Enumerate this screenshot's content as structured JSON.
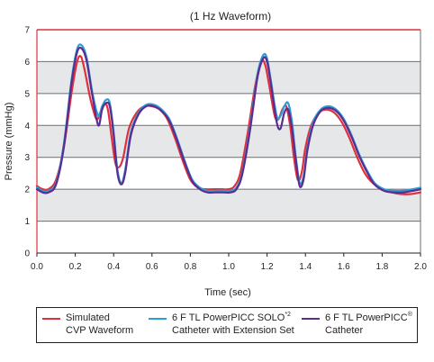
{
  "chart_data": {
    "type": "line",
    "title": "(1 Hz Waveform)",
    "xlabel": "Time (sec)",
    "ylabel": "Pressure (mmHg)",
    "xlim": [
      0,
      2.0
    ],
    "ylim": [
      0,
      7
    ],
    "xticks": [
      "0.0",
      "0.2",
      "0.4",
      "0.6",
      "0.8",
      "1.0",
      "1.2",
      "1.4",
      "1.6",
      "1.8",
      "2.0"
    ],
    "yticks": [
      "0",
      "1",
      "2",
      "3",
      "4",
      "5",
      "6",
      "7"
    ],
    "grid": "horizontal bands",
    "legend_position": "bottom",
    "series": [
      {
        "name": "Simulated CVP Waveform",
        "legend_line1": "Simulated",
        "legend_line2": "CVP Waveform",
        "color": "#e0303c",
        "x": [
          0.0,
          0.03,
          0.06,
          0.1,
          0.14,
          0.18,
          0.21,
          0.23,
          0.25,
          0.28,
          0.31,
          0.33,
          0.35,
          0.37,
          0.39,
          0.41,
          0.43,
          0.45,
          0.48,
          0.52,
          0.56,
          0.6,
          0.64,
          0.68,
          0.72,
          0.76,
          0.8,
          0.84,
          0.88,
          0.92,
          0.96,
          1.0,
          1.03,
          1.06,
          1.1,
          1.14,
          1.17,
          1.19,
          1.21,
          1.24,
          1.26,
          1.28,
          1.3,
          1.32,
          1.34,
          1.36,
          1.38,
          1.4,
          1.43,
          1.47,
          1.51,
          1.55,
          1.59,
          1.63,
          1.67,
          1.71,
          1.75,
          1.8,
          1.85,
          1.9,
          1.95,
          2.0
        ],
        "y": [
          2.1,
          2.0,
          2.0,
          2.3,
          3.3,
          5.0,
          6.0,
          6.15,
          5.7,
          4.8,
          4.2,
          4.4,
          4.7,
          4.5,
          3.6,
          2.8,
          2.7,
          3.0,
          3.9,
          4.4,
          4.6,
          4.6,
          4.5,
          4.2,
          3.6,
          2.9,
          2.3,
          2.05,
          2.0,
          2.0,
          2.0,
          2.0,
          2.1,
          2.5,
          3.8,
          5.3,
          6.0,
          5.9,
          5.3,
          4.3,
          4.2,
          4.5,
          4.6,
          4.0,
          3.0,
          2.3,
          2.5,
          3.3,
          4.0,
          4.4,
          4.5,
          4.4,
          4.1,
          3.6,
          3.0,
          2.5,
          2.2,
          2.0,
          1.9,
          1.85,
          1.85,
          1.9
        ]
      },
      {
        "name": "6 F TL PowerPICC SOLO*2 Catheter with Extension Set",
        "legend_line1": "6 F TL PowerPICC SOLO",
        "legend_sup": "*2",
        "legend_line2": "Catheter with Extension Set",
        "color": "#2e9bd6",
        "x": [
          0.0,
          0.03,
          0.06,
          0.1,
          0.14,
          0.18,
          0.21,
          0.235,
          0.26,
          0.29,
          0.32,
          0.34,
          0.36,
          0.38,
          0.4,
          0.42,
          0.44,
          0.46,
          0.49,
          0.53,
          0.57,
          0.61,
          0.65,
          0.69,
          0.73,
          0.77,
          0.81,
          0.85,
          0.89,
          0.93,
          0.97,
          1.01,
          1.04,
          1.07,
          1.11,
          1.15,
          1.18,
          1.2,
          1.22,
          1.25,
          1.27,
          1.29,
          1.31,
          1.33,
          1.35,
          1.37,
          1.39,
          1.41,
          1.44,
          1.48,
          1.52,
          1.56,
          1.6,
          1.64,
          1.68,
          1.72,
          1.76,
          1.81,
          1.86,
          1.91,
          1.96,
          2.0
        ],
        "y": [
          2.05,
          1.95,
          1.95,
          2.2,
          3.4,
          5.4,
          6.4,
          6.5,
          6.1,
          5.0,
          4.3,
          4.6,
          4.8,
          4.7,
          3.8,
          2.6,
          2.2,
          2.6,
          3.8,
          4.4,
          4.65,
          4.65,
          4.5,
          4.2,
          3.6,
          2.9,
          2.3,
          2.05,
          1.95,
          1.95,
          1.95,
          1.95,
          2.05,
          2.5,
          3.9,
          5.6,
          6.2,
          6.1,
          5.4,
          4.3,
          4.3,
          4.6,
          4.7,
          4.1,
          3.0,
          2.2,
          2.4,
          3.3,
          4.1,
          4.5,
          4.6,
          4.5,
          4.2,
          3.7,
          3.1,
          2.6,
          2.2,
          2.0,
          1.95,
          1.95,
          2.0,
          2.05
        ]
      },
      {
        "name": "6 F TL PowerPICC® Catheter",
        "legend_line1": "6 F TL PowerPICC",
        "legend_sup": "®",
        "legend_line2": "Catheter",
        "color": "#5b2d8e",
        "x": [
          0.0,
          0.03,
          0.06,
          0.1,
          0.14,
          0.18,
          0.21,
          0.235,
          0.26,
          0.29,
          0.32,
          0.34,
          0.36,
          0.38,
          0.4,
          0.42,
          0.44,
          0.46,
          0.49,
          0.53,
          0.57,
          0.61,
          0.65,
          0.69,
          0.73,
          0.77,
          0.81,
          0.85,
          0.89,
          0.93,
          0.97,
          1.01,
          1.04,
          1.07,
          1.11,
          1.15,
          1.18,
          1.2,
          1.22,
          1.25,
          1.27,
          1.29,
          1.31,
          1.33,
          1.35,
          1.37,
          1.39,
          1.41,
          1.44,
          1.48,
          1.52,
          1.56,
          1.6,
          1.64,
          1.68,
          1.72,
          1.76,
          1.81,
          1.86,
          1.91,
          1.96,
          2.0
        ],
        "y": [
          2.0,
          1.9,
          1.9,
          2.15,
          3.3,
          5.3,
          6.3,
          6.4,
          6.0,
          4.9,
          4.0,
          4.5,
          4.7,
          4.6,
          3.7,
          2.5,
          2.15,
          2.5,
          3.7,
          4.35,
          4.6,
          4.6,
          4.45,
          4.15,
          3.55,
          2.85,
          2.25,
          2.0,
          1.9,
          1.9,
          1.9,
          1.9,
          2.0,
          2.45,
          3.8,
          5.5,
          6.1,
          6.0,
          5.3,
          4.1,
          3.9,
          4.4,
          4.5,
          3.9,
          2.9,
          2.1,
          2.3,
          3.2,
          4.0,
          4.45,
          4.55,
          4.45,
          4.15,
          3.65,
          3.05,
          2.55,
          2.15,
          1.95,
          1.9,
          1.9,
          1.95,
          2.0
        ]
      }
    ]
  },
  "colors": {
    "band_dark": "#e6e7e8",
    "band_light": "#ffffff",
    "gridline": "#6d6e71",
    "frame": "#e0303c",
    "text": "#231f20"
  }
}
